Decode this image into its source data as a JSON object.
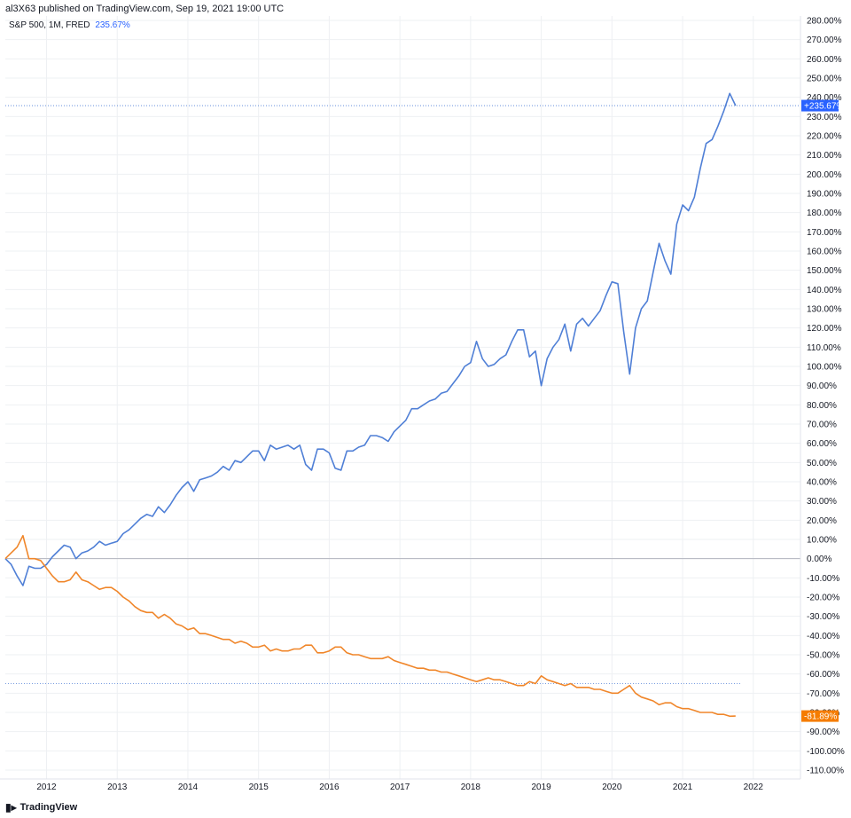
{
  "header": {
    "published": "al3X63 published on TradingView.com, Sep 19, 2021 19:00 UTC"
  },
  "legend": {
    "symbol": "S&P 500, 1M, FRED",
    "value": "235.67%"
  },
  "footer": {
    "brand": "TradingView"
  },
  "colors": {
    "sp500": "#4f7fd6",
    "fred": "#f0862a",
    "sp500_tag": "#2962ff",
    "fred_tag": "#f57c00",
    "grid": "#eef0f3",
    "zero": "#b2b5be"
  },
  "chart_data": {
    "type": "line",
    "title": "S&P 500, 1M, FRED",
    "xlabel": "",
    "ylabel": "",
    "y_unit": "%",
    "ylim": [
      -110,
      280
    ],
    "xlim": [
      "2011-06",
      "2022-06"
    ],
    "x_ticks": [
      "2012",
      "2013",
      "2014",
      "2015",
      "2016",
      "2017",
      "2018",
      "2019",
      "2020",
      "2021",
      "2022"
    ],
    "y_ticks": [
      "280.00%",
      "270.00%",
      "260.00%",
      "250.00%",
      "240.00%",
      "230.00%",
      "220.00%",
      "210.00%",
      "200.00%",
      "190.00%",
      "180.00%",
      "170.00%",
      "160.00%",
      "150.00%",
      "140.00%",
      "130.00%",
      "120.00%",
      "110.00%",
      "100.00%",
      "90.00%",
      "80.00%",
      "70.00%",
      "60.00%",
      "50.00%",
      "40.00%",
      "30.00%",
      "20.00%",
      "10.00%",
      "0.00%",
      "-10.00%",
      "-20.00%",
      "-30.00%",
      "-40.00%",
      "-50.00%",
      "-60.00%",
      "-70.00%",
      "-80.00%",
      "-90.00%",
      "-100.00%",
      "-110.00%"
    ],
    "last_value_labels": [
      {
        "series": "S&P 500",
        "text": "+235.67%",
        "value": 235.67
      },
      {
        "series": "FRED",
        "text": "-81.89%",
        "value": -81.89
      }
    ],
    "series": [
      {
        "name": "S&P 500",
        "points": [
          [
            "2011-06",
            0
          ],
          [
            "2011-07",
            -3
          ],
          [
            "2011-08",
            -9
          ],
          [
            "2011-09",
            -14
          ],
          [
            "2011-10",
            -4
          ],
          [
            "2011-11",
            -5
          ],
          [
            "2011-12",
            -5
          ],
          [
            "2012-01",
            -3
          ],
          [
            "2012-02",
            1
          ],
          [
            "2012-03",
            4
          ],
          [
            "2012-04",
            7
          ],
          [
            "2012-05",
            6
          ],
          [
            "2012-06",
            0
          ],
          [
            "2012-07",
            3
          ],
          [
            "2012-08",
            4
          ],
          [
            "2012-09",
            6
          ],
          [
            "2012-10",
            9
          ],
          [
            "2012-11",
            7
          ],
          [
            "2012-12",
            8
          ],
          [
            "2013-01",
            9
          ],
          [
            "2013-02",
            13
          ],
          [
            "2013-03",
            15
          ],
          [
            "2013-04",
            18
          ],
          [
            "2013-05",
            21
          ],
          [
            "2013-06",
            23
          ],
          [
            "2013-07",
            22
          ],
          [
            "2013-08",
            27
          ],
          [
            "2013-09",
            24
          ],
          [
            "2013-10",
            28
          ],
          [
            "2013-11",
            33
          ],
          [
            "2013-12",
            37
          ],
          [
            "2014-01",
            40
          ],
          [
            "2014-02",
            35
          ],
          [
            "2014-03",
            41
          ],
          [
            "2014-04",
            42
          ],
          [
            "2014-05",
            43
          ],
          [
            "2014-06",
            45
          ],
          [
            "2014-07",
            48
          ],
          [
            "2014-08",
            46
          ],
          [
            "2014-09",
            51
          ],
          [
            "2014-10",
            50
          ],
          [
            "2014-11",
            53
          ],
          [
            "2014-12",
            56
          ],
          [
            "2015-01",
            56
          ],
          [
            "2015-02",
            51
          ],
          [
            "2015-03",
            59
          ],
          [
            "2015-04",
            57
          ],
          [
            "2015-05",
            58
          ],
          [
            "2015-06",
            59
          ],
          [
            "2015-07",
            57
          ],
          [
            "2015-08",
            59
          ],
          [
            "2015-09",
            49
          ],
          [
            "2015-10",
            46
          ],
          [
            "2015-11",
            57
          ],
          [
            "2015-12",
            57
          ],
          [
            "2016-01",
            55
          ],
          [
            "2016-02",
            47
          ],
          [
            "2016-03",
            46
          ],
          [
            "2016-04",
            56
          ],
          [
            "2016-05",
            56
          ],
          [
            "2016-06",
            58
          ],
          [
            "2016-07",
            59
          ],
          [
            "2016-08",
            64
          ],
          [
            "2016-09",
            64
          ],
          [
            "2016-10",
            63
          ],
          [
            "2016-11",
            61
          ],
          [
            "2016-12",
            66
          ],
          [
            "2017-01",
            69
          ],
          [
            "2017-02",
            72
          ],
          [
            "2017-03",
            78
          ],
          [
            "2017-04",
            78
          ],
          [
            "2017-05",
            80
          ],
          [
            "2017-06",
            82
          ],
          [
            "2017-07",
            83
          ],
          [
            "2017-08",
            86
          ],
          [
            "2017-09",
            87
          ],
          [
            "2017-10",
            91
          ],
          [
            "2017-11",
            95
          ],
          [
            "2017-12",
            100
          ],
          [
            "2018-01",
            102
          ],
          [
            "2018-02",
            113
          ],
          [
            "2018-03",
            104
          ],
          [
            "2018-04",
            100
          ],
          [
            "2018-05",
            101
          ],
          [
            "2018-06",
            104
          ],
          [
            "2018-07",
            106
          ],
          [
            "2018-08",
            113
          ],
          [
            "2018-09",
            119
          ],
          [
            "2018-10",
            119
          ],
          [
            "2018-11",
            105
          ],
          [
            "2018-12",
            108
          ],
          [
            "2019-01",
            90
          ],
          [
            "2019-02",
            104
          ],
          [
            "2019-03",
            110
          ],
          [
            "2019-04",
            114
          ],
          [
            "2019-05",
            122
          ],
          [
            "2019-06",
            108
          ],
          [
            "2019-07",
            122
          ],
          [
            "2019-08",
            125
          ],
          [
            "2019-09",
            121
          ],
          [
            "2019-10",
            125
          ],
          [
            "2019-11",
            129
          ],
          [
            "2019-12",
            137
          ],
          [
            "2020-01",
            144
          ],
          [
            "2020-02",
            143
          ],
          [
            "2020-03",
            118
          ],
          [
            "2020-04",
            96
          ],
          [
            "2020-05",
            120
          ],
          [
            "2020-06",
            130
          ],
          [
            "2020-07",
            134
          ],
          [
            "2020-08",
            149
          ],
          [
            "2020-09",
            164
          ],
          [
            "2020-10",
            155
          ],
          [
            "2020-11",
            148
          ],
          [
            "2020-12",
            174
          ],
          [
            "2021-01",
            184
          ],
          [
            "2021-02",
            181
          ],
          [
            "2021-03",
            188
          ],
          [
            "2021-04",
            203
          ],
          [
            "2021-05",
            216
          ],
          [
            "2021-06",
            218
          ],
          [
            "2021-07",
            225
          ],
          [
            "2021-08",
            233
          ],
          [
            "2021-09",
            242
          ],
          [
            "2021-10",
            235.67
          ]
        ]
      },
      {
        "name": "FRED",
        "points": [
          [
            "2011-06",
            0
          ],
          [
            "2011-07",
            3
          ],
          [
            "2011-08",
            6
          ],
          [
            "2011-09",
            12
          ],
          [
            "2011-10",
            0
          ],
          [
            "2011-11",
            0
          ],
          [
            "2011-12",
            -1
          ],
          [
            "2012-01",
            -5
          ],
          [
            "2012-02",
            -9
          ],
          [
            "2012-03",
            -12
          ],
          [
            "2012-04",
            -12
          ],
          [
            "2012-05",
            -11
          ],
          [
            "2012-06",
            -7
          ],
          [
            "2012-07",
            -11
          ],
          [
            "2012-08",
            -12
          ],
          [
            "2012-09",
            -14
          ],
          [
            "2012-10",
            -16
          ],
          [
            "2012-11",
            -15
          ],
          [
            "2012-12",
            -15
          ],
          [
            "2013-01",
            -17
          ],
          [
            "2013-02",
            -20
          ],
          [
            "2013-03",
            -22
          ],
          [
            "2013-04",
            -25
          ],
          [
            "2013-05",
            -27
          ],
          [
            "2013-06",
            -28
          ],
          [
            "2013-07",
            -28
          ],
          [
            "2013-08",
            -31
          ],
          [
            "2013-09",
            -29
          ],
          [
            "2013-10",
            -31
          ],
          [
            "2013-11",
            -34
          ],
          [
            "2013-12",
            -35
          ],
          [
            "2014-01",
            -37
          ],
          [
            "2014-02",
            -36
          ],
          [
            "2014-03",
            -39
          ],
          [
            "2014-04",
            -39
          ],
          [
            "2014-05",
            -40
          ],
          [
            "2014-06",
            -41
          ],
          [
            "2014-07",
            -42
          ],
          [
            "2014-08",
            -42
          ],
          [
            "2014-09",
            -44
          ],
          [
            "2014-10",
            -43
          ],
          [
            "2014-11",
            -44
          ],
          [
            "2014-12",
            -46
          ],
          [
            "2015-01",
            -46
          ],
          [
            "2015-02",
            -45
          ],
          [
            "2015-03",
            -48
          ],
          [
            "2015-04",
            -47
          ],
          [
            "2015-05",
            -48
          ],
          [
            "2015-06",
            -48
          ],
          [
            "2015-07",
            -47
          ],
          [
            "2015-08",
            -47
          ],
          [
            "2015-09",
            -45
          ],
          [
            "2015-10",
            -45
          ],
          [
            "2015-11",
            -49
          ],
          [
            "2015-12",
            -49
          ],
          [
            "2016-01",
            -48
          ],
          [
            "2016-02",
            -46
          ],
          [
            "2016-03",
            -46
          ],
          [
            "2016-04",
            -49
          ],
          [
            "2016-05",
            -50
          ],
          [
            "2016-06",
            -50
          ],
          [
            "2016-07",
            -51
          ],
          [
            "2016-08",
            -52
          ],
          [
            "2016-09",
            -52
          ],
          [
            "2016-10",
            -52
          ],
          [
            "2016-11",
            -51
          ],
          [
            "2016-12",
            -53
          ],
          [
            "2017-01",
            -54
          ],
          [
            "2017-02",
            -55
          ],
          [
            "2017-03",
            -56
          ],
          [
            "2017-04",
            -57
          ],
          [
            "2017-05",
            -57
          ],
          [
            "2017-06",
            -58
          ],
          [
            "2017-07",
            -58
          ],
          [
            "2017-08",
            -59
          ],
          [
            "2017-09",
            -59
          ],
          [
            "2017-10",
            -60
          ],
          [
            "2017-11",
            -61
          ],
          [
            "2017-12",
            -62
          ],
          [
            "2018-01",
            -63
          ],
          [
            "2018-02",
            -64
          ],
          [
            "2018-03",
            -63
          ],
          [
            "2018-04",
            -62
          ],
          [
            "2018-05",
            -63
          ],
          [
            "2018-06",
            -63
          ],
          [
            "2018-07",
            -64
          ],
          [
            "2018-08",
            -65
          ],
          [
            "2018-09",
            -66
          ],
          [
            "2018-10",
            -66
          ],
          [
            "2018-11",
            -64
          ],
          [
            "2018-12",
            -65
          ],
          [
            "2019-01",
            -61
          ],
          [
            "2019-02",
            -63
          ],
          [
            "2019-03",
            -64
          ],
          [
            "2019-04",
            -65
          ],
          [
            "2019-05",
            -66
          ],
          [
            "2019-06",
            -65
          ],
          [
            "2019-07",
            -67
          ],
          [
            "2019-08",
            -67
          ],
          [
            "2019-09",
            -67
          ],
          [
            "2019-10",
            -68
          ],
          [
            "2019-11",
            -68
          ],
          [
            "2019-12",
            -69
          ],
          [
            "2020-01",
            -70
          ],
          [
            "2020-02",
            -70
          ],
          [
            "2020-03",
            -68
          ],
          [
            "2020-04",
            -66
          ],
          [
            "2020-05",
            -70
          ],
          [
            "2020-06",
            -72
          ],
          [
            "2020-07",
            -73
          ],
          [
            "2020-08",
            -74
          ],
          [
            "2020-09",
            -76
          ],
          [
            "2020-10",
            -75
          ],
          [
            "2020-11",
            -75
          ],
          [
            "2020-12",
            -77
          ],
          [
            "2021-01",
            -78
          ],
          [
            "2021-02",
            -78
          ],
          [
            "2021-03",
            -79
          ],
          [
            "2021-04",
            -80
          ],
          [
            "2021-05",
            -80
          ],
          [
            "2021-06",
            -80
          ],
          [
            "2021-07",
            -81
          ],
          [
            "2021-08",
            -81
          ],
          [
            "2021-09",
            -82
          ],
          [
            "2021-10",
            -81.89
          ]
        ]
      }
    ],
    "grid": true,
    "legend_position": "top-left"
  }
}
